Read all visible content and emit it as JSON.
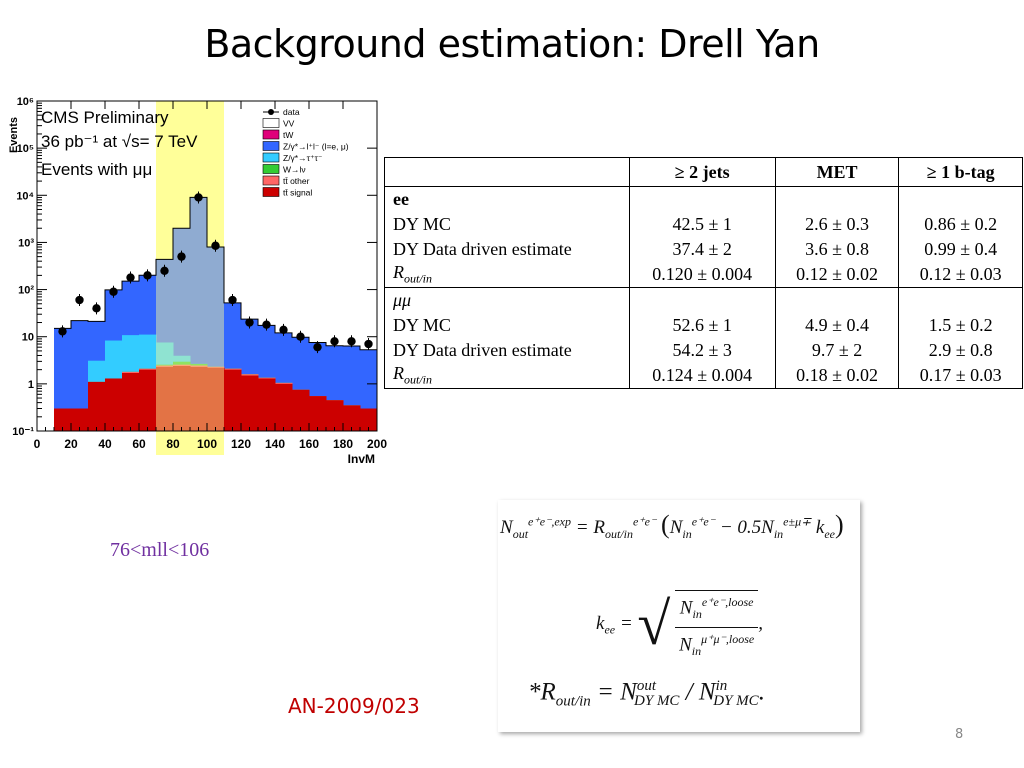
{
  "slide": {
    "title": "Background estimation:  Drell Yan",
    "page_number": "8",
    "mll_label": "76<mll<106",
    "an_label": "AN-2009/023"
  },
  "plot_text": {
    "cms": "CMS Preliminary",
    "lumi": "36 pb⁻¹ at √s= 7 TeV",
    "events_with": "Events with μμ",
    "ylabel": "Events",
    "xlabel": "InvM"
  },
  "chart_data": {
    "type": "bar",
    "xlabel": "InvM",
    "ylabel": "Events",
    "xlim": [
      0,
      200
    ],
    "ylim": [
      0.1,
      1000000
    ],
    "y_scale": "log",
    "x_ticks": [
      "0",
      "20",
      "40",
      "60",
      "80",
      "100",
      "120",
      "140",
      "160",
      "180",
      "200"
    ],
    "y_ticks": [
      "10⁻¹",
      "1",
      "10",
      "10²",
      "10³",
      "10⁴",
      "10⁵",
      "10⁶"
    ],
    "highlight_band": [
      70,
      110
    ],
    "highlight_color": "#ffff99",
    "legend": [
      {
        "label": "data",
        "color": "#000000",
        "kind": "marker"
      },
      {
        "label": "VV",
        "color": "#ffffff"
      },
      {
        "label": "tW",
        "color": "#e0007a"
      },
      {
        "label": "Z/γ*→l⁺l⁻ (l=e, μ)",
        "color": "#3366ff"
      },
      {
        "label": "Z/γ*→τ⁺τ⁻",
        "color": "#33ccff"
      },
      {
        "label": "W→lν",
        "color": "#33cc33"
      },
      {
        "label": "tt̄ other",
        "color": "#ff6666"
      },
      {
        "label": "tt̄ signal",
        "color": "#cc0000"
      }
    ],
    "bin_edges": [
      10,
      20,
      30,
      40,
      50,
      60,
      70,
      80,
      90,
      100,
      110,
      120,
      130,
      140,
      150,
      160,
      170,
      180,
      190,
      200
    ],
    "series": [
      {
        "name": "tt̄ signal",
        "color": "#cc0000",
        "values": [
          0.3,
          0.3,
          1.1,
          1.3,
          1.7,
          2.0,
          2.3,
          2.4,
          2.3,
          2.2,
          2.0,
          1.5,
          1.3,
          1.0,
          0.75,
          0.55,
          0.45,
          0.35,
          0.3
        ]
      },
      {
        "name": "tt̄ other",
        "color": "#ff6666",
        "values": [
          0,
          0,
          0,
          0,
          0.1,
          0.1,
          0.15,
          0.15,
          0.15,
          0.1,
          0.1,
          0.1,
          0.05,
          0.05,
          0,
          0,
          0,
          0,
          0
        ]
      },
      {
        "name": "W→lν",
        "color": "#33cc33",
        "values": [
          0,
          0,
          0,
          0,
          0,
          0,
          0.1,
          0.4,
          0.2,
          0,
          0,
          0,
          0,
          0,
          0,
          0,
          0,
          0,
          0
        ]
      },
      {
        "name": "Z/γ*→τ⁺τ⁻",
        "color": "#33ccff",
        "values": [
          0,
          0,
          2,
          7,
          9,
          9,
          5,
          1,
          0,
          0,
          0,
          0,
          0,
          0,
          0,
          0,
          0,
          0,
          0
        ]
      },
      {
        "name": "Z/γ*→l⁺l⁻ (l=e, μ)",
        "color": "#3366ff",
        "values": [
          14.7,
          21.6,
          18,
          90,
          140,
          190,
          430,
          2000,
          9000,
          800,
          50,
          22,
          16,
          11,
          9,
          7,
          6,
          6,
          5
        ]
      }
    ],
    "data_points": {
      "name": "data",
      "x": [
        15,
        25,
        35,
        45,
        55,
        65,
        75,
        85,
        95,
        105,
        115,
        125,
        135,
        145,
        155,
        165,
        175,
        185,
        195
      ],
      "y": [
        13,
        60,
        40,
        90,
        180,
        200,
        250,
        500,
        9000,
        850,
        60,
        20,
        18,
        14,
        10,
        6,
        8,
        8,
        7
      ]
    }
  },
  "table": {
    "headers": [
      "",
      "≥ 2 jets",
      "MET",
      "≥ 1 b-tag"
    ],
    "groups": [
      {
        "name": "ee",
        "rows": [
          {
            "label": "DY MC",
            "v": [
              "42.5 ± 1",
              "2.6 ± 0.3",
              "0.86 ± 0.2"
            ]
          },
          {
            "label": "DY Data driven estimate",
            "v": [
              "37.4 ± 2",
              "3.6 ± 0.8",
              "0.99 ± 0.4"
            ]
          },
          {
            "label": "R_out/in",
            "v": [
              "0.120 ± 0.004",
              "0.12 ± 0.02",
              "0.12 ± 0.03"
            ]
          }
        ]
      },
      {
        "name": "μμ",
        "rows": [
          {
            "label": "DY MC",
            "v": [
              "52.6 ± 1",
              "4.9 ± 0.4",
              "1.5 ± 0.2"
            ]
          },
          {
            "label": "DY Data driven estimate",
            "v": [
              "54.2 ± 3",
              "9.7 ± 2",
              "2.9 ± 0.8"
            ]
          },
          {
            "label": "R_out/in",
            "v": [
              "0.124 ± 0.004",
              "0.18 ± 0.02",
              "0.17 ± 0.03"
            ]
          }
        ]
      }
    ]
  },
  "equations": {
    "eq1": "N_out^(e⁺e⁻,exp) = R_out/in^(e⁺e⁻) (N_in^(e⁺e⁻) − 0.5 N_in^(e±μ∓) k_ee)",
    "eq2": "k_ee = √( N_in^(e⁺e⁻,loose) / N_in^(μ⁺μ⁻,loose) ),",
    "eq3": "*R_out/in = N^out_DY MC / N^in_DY MC."
  }
}
